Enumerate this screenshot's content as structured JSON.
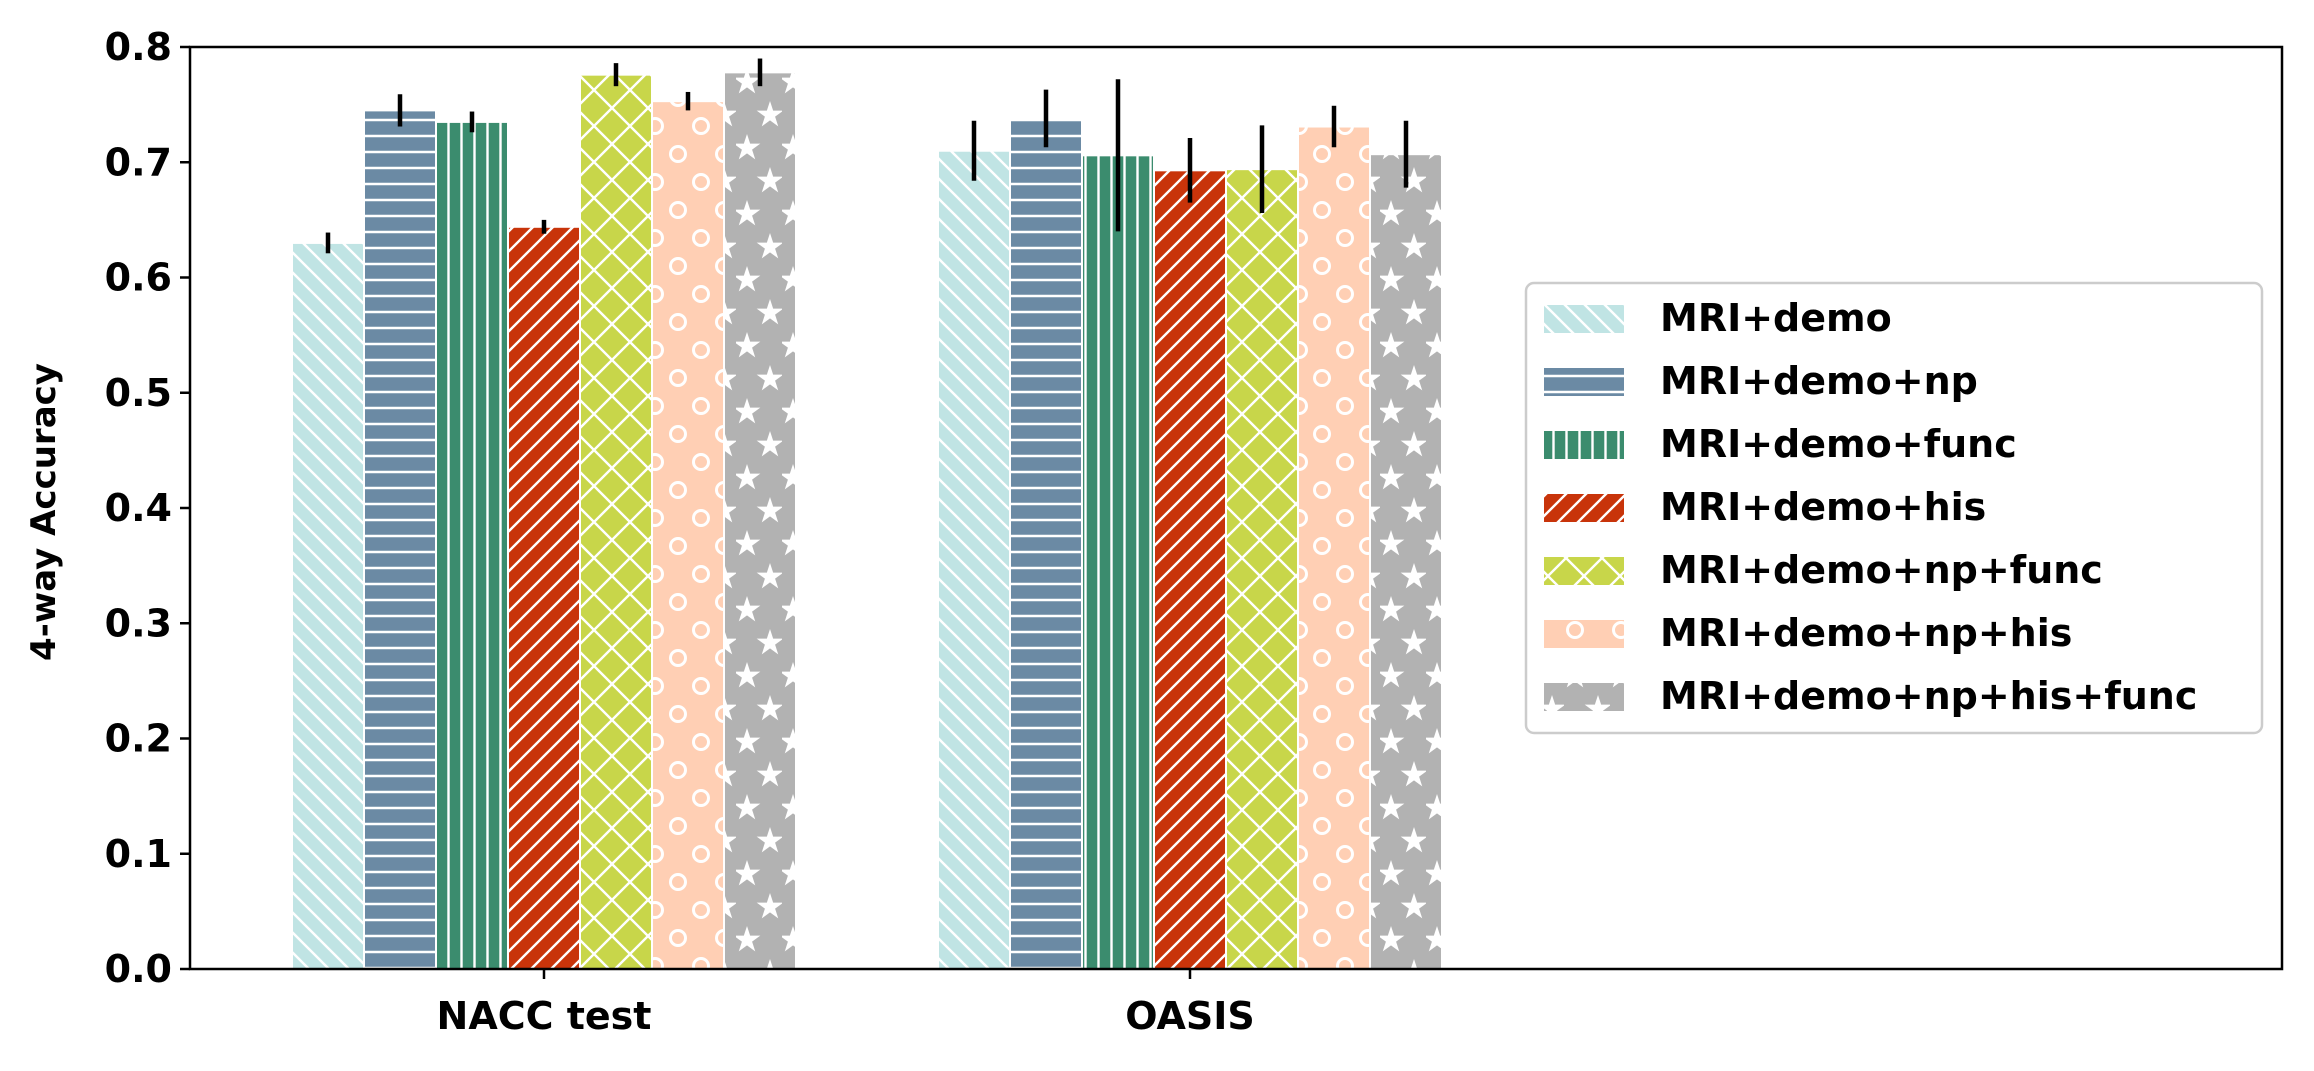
{
  "chart_data": {
    "type": "bar",
    "title": "",
    "xlabel": "",
    "ylabel": "4-way Accuracy",
    "ylim": [
      0,
      0.8
    ],
    "yticks": [
      "0.0",
      "0.1",
      "0.2",
      "0.3",
      "0.4",
      "0.5",
      "0.6",
      "0.7",
      "0.8"
    ],
    "categories": [
      "NACC test",
      "OASIS"
    ],
    "legend_position": "center-right",
    "grid": false,
    "series": [
      {
        "name": "MRI+demo",
        "color": "#c0e4e4",
        "pattern": "backslash",
        "values": [
          0.63,
          0.71
        ],
        "errors": [
          0.009,
          0.026
        ]
      },
      {
        "name": "MRI+demo+np",
        "color": "#6b8aa4",
        "pattern": "horizontal",
        "values": [
          0.745,
          0.738
        ],
        "errors": [
          0.014,
          0.025
        ]
      },
      {
        "name": "MRI+demo+func",
        "color": "#3b8c6e",
        "pattern": "vertical",
        "values": [
          0.735,
          0.706
        ],
        "errors": [
          0.009,
          0.066
        ]
      },
      {
        "name": "MRI+demo+his",
        "color": "#c8340a",
        "pattern": "slash",
        "values": [
          0.644,
          0.693
        ],
        "errors": [
          0.006,
          0.028
        ]
      },
      {
        "name": "MRI+demo+np+func",
        "color": "#c8d64a",
        "pattern": "cross",
        "values": [
          0.776,
          0.694
        ],
        "errors": [
          0.01,
          0.038
        ]
      },
      {
        "name": "MRI+demo+np+his",
        "color": "#ffcfb4",
        "pattern": "circles",
        "values": [
          0.753,
          0.731
        ],
        "errors": [
          0.008,
          0.018
        ]
      },
      {
        "name": "MRI+demo+np+his+func",
        "color": "#b2b2b2",
        "pattern": "stars",
        "values": [
          0.778,
          0.707
        ],
        "errors": [
          0.012,
          0.029
        ]
      }
    ]
  }
}
